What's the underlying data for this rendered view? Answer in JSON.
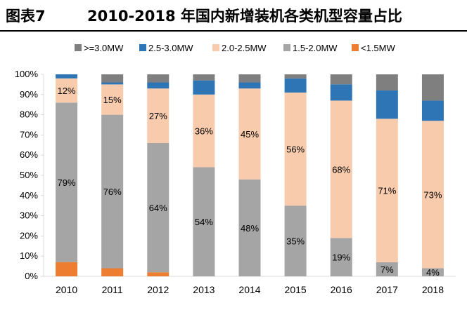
{
  "title": {
    "number": "图表7",
    "text": "2010-2018 年国内新增装机各类机型容量占比"
  },
  "chart_data": {
    "type": "bar",
    "stacked": true,
    "percent": true,
    "categories": [
      "2010",
      "2011",
      "2012",
      "2013",
      "2014",
      "2015",
      "2016",
      "2017",
      "2018"
    ],
    "y_ticks": [
      "0%",
      "10%",
      "20%",
      "30%",
      "40%",
      "50%",
      "60%",
      "70%",
      "80%",
      "90%",
      "100%"
    ],
    "ylim": [
      0,
      100
    ],
    "legend_position": "top",
    "grid": false,
    "series": [
      {
        "name": "<1.5MW",
        "color": "#ED7D31",
        "values": [
          7,
          4,
          2,
          0,
          0,
          0,
          0,
          0,
          0
        ]
      },
      {
        "name": "1.5-2.0MW",
        "color": "#A5A5A5",
        "values": [
          79,
          76,
          64,
          54,
          48,
          35,
          19,
          7,
          4
        ],
        "labels": [
          "79%",
          "76%",
          "64%",
          "54%",
          "48%",
          "35%",
          "19%",
          "7%",
          "4%"
        ]
      },
      {
        "name": "2.0-2.5MW",
        "color": "#F8CBAD",
        "values": [
          12,
          15,
          27,
          36,
          45,
          56,
          68,
          71,
          73
        ],
        "labels": [
          "12%",
          "15%",
          "27%",
          "36%",
          "45%",
          "56%",
          "68%",
          "71%",
          "73%"
        ]
      },
      {
        "name": "2.5-3.0MW",
        "color": "#2E75B6",
        "values": [
          2,
          1,
          3,
          7,
          3,
          7,
          8,
          14,
          10
        ]
      },
      {
        "name": ">=3.0MW",
        "color": "#7F7F7F",
        "values": [
          0,
          4,
          4,
          3,
          4,
          2,
          5,
          8,
          13
        ]
      }
    ],
    "legend_order": [
      ">=3.0MW",
      "2.5-3.0MW",
      "2.0-2.5MW",
      "1.5-2.0MW",
      "<1.5MW"
    ]
  }
}
